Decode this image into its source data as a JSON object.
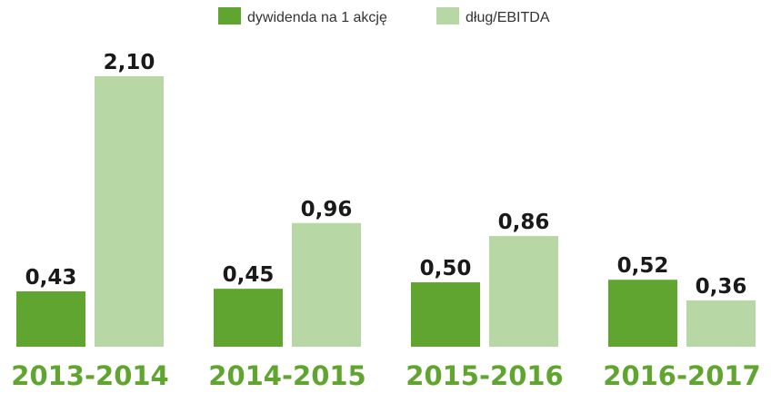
{
  "chart_data": {
    "type": "bar",
    "categories": [
      "2013-2014",
      "2014-2015",
      "2015-2016",
      "2016-2017"
    ],
    "series": [
      {
        "name": "dywidenda na 1 akcję",
        "values": [
          0.43,
          0.45,
          0.5,
          0.52
        ],
        "labels": [
          "0,43",
          "0,45",
          "0,50",
          "0,52"
        ],
        "color": "#5fa52f"
      },
      {
        "name": "dług/EBITDA",
        "values": [
          2.1,
          0.96,
          0.86,
          0.36
        ],
        "labels": [
          "2,10",
          "0,96",
          "0,86",
          "0,36"
        ],
        "color": "#b7d7a4"
      }
    ],
    "title": "",
    "xlabel": "",
    "ylabel": "",
    "ylim": [
      0,
      2.1
    ],
    "grid": false,
    "legend": "top-center",
    "category_label_color": "#5fa52f"
  }
}
